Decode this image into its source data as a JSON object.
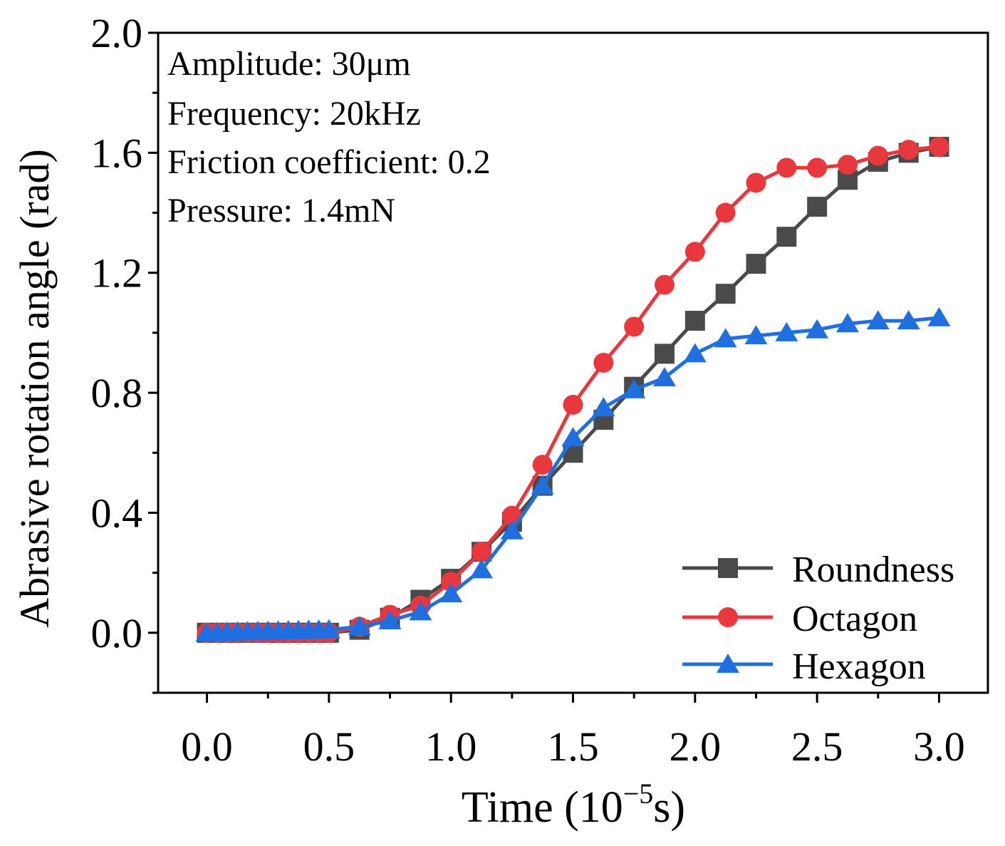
{
  "colors": {
    "roundness": "#4a4a4a",
    "octagon": "#e8383d",
    "hexagon": "#1f6fe0",
    "axis": "#000000"
  },
  "annotations": {
    "line1": "Amplitude: 30μm",
    "line2": "Frequency: 20kHz",
    "line3": "Friction coefficient: 0.2",
    "line4": "Pressure: 1.4mN"
  },
  "chart_data": {
    "type": "line",
    "title": "",
    "xlabel_prefix": "Time (10",
    "xlabel_exp": "−5",
    "xlabel_suffix": "s)",
    "ylabel": "Abrasive rotation angle (rad)",
    "xlim": [
      -0.2,
      3.2
    ],
    "ylim": [
      -0.2,
      2.0
    ],
    "xticks": [
      0.0,
      0.5,
      1.0,
      1.5,
      2.0,
      2.5,
      3.0
    ],
    "xtick_labels": [
      "0.0",
      "0.5",
      "1.0",
      "1.5",
      "2.0",
      "2.5",
      "3.0"
    ],
    "yticks": [
      0.0,
      0.4,
      0.8,
      1.2,
      1.6,
      2.0
    ],
    "ytick_labels": [
      "0.0",
      "0.4",
      "0.8",
      "1.2",
      "1.6",
      "2.0"
    ],
    "legend_position": "bottom-right",
    "series": [
      {
        "name": "Roundness",
        "marker": "square",
        "x": [
          0.0,
          0.5,
          0.625,
          0.75,
          0.875,
          1.0,
          1.125,
          1.25,
          1.375,
          1.5,
          1.625,
          1.75,
          1.875,
          2.0,
          2.125,
          2.25,
          2.375,
          2.5,
          2.625,
          2.75,
          2.875,
          3.0
        ],
        "y": [
          0.0,
          0.0,
          0.01,
          0.05,
          0.11,
          0.18,
          0.27,
          0.37,
          0.49,
          0.6,
          0.71,
          0.82,
          0.93,
          1.04,
          1.13,
          1.23,
          1.32,
          1.42,
          1.51,
          1.57,
          1.6,
          1.62
        ]
      },
      {
        "name": "Octagon",
        "marker": "circle",
        "x": [
          0.0,
          0.5,
          0.625,
          0.75,
          0.875,
          1.0,
          1.125,
          1.25,
          1.375,
          1.5,
          1.625,
          1.75,
          1.875,
          2.0,
          2.125,
          2.25,
          2.375,
          2.5,
          2.625,
          2.75,
          2.875,
          3.0
        ],
        "y": [
          0.0,
          0.0,
          0.02,
          0.06,
          0.09,
          0.17,
          0.27,
          0.39,
          0.56,
          0.76,
          0.9,
          1.02,
          1.16,
          1.27,
          1.4,
          1.5,
          1.55,
          1.55,
          1.56,
          1.59,
          1.61,
          1.62
        ]
      },
      {
        "name": "Hexagon",
        "marker": "triangle",
        "x": [
          0.0,
          0.5,
          0.625,
          0.75,
          0.875,
          1.0,
          1.125,
          1.25,
          1.375,
          1.5,
          1.625,
          1.75,
          1.875,
          2.0,
          2.125,
          2.25,
          2.375,
          2.5,
          2.625,
          2.75,
          2.875,
          3.0
        ],
        "y": [
          0.0,
          0.01,
          0.02,
          0.04,
          0.07,
          0.13,
          0.21,
          0.34,
          0.49,
          0.65,
          0.75,
          0.81,
          0.85,
          0.93,
          0.98,
          0.99,
          1.0,
          1.01,
          1.03,
          1.04,
          1.04,
          1.05
        ]
      }
    ]
  }
}
